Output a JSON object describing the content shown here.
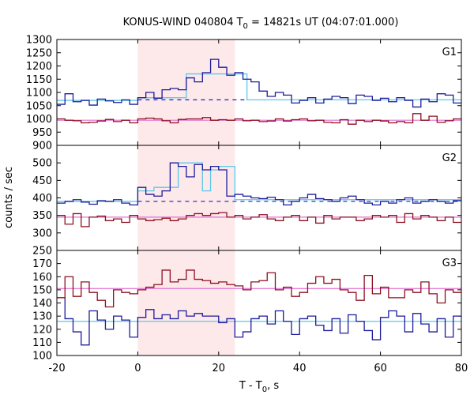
{
  "chart_data": {
    "type": "line",
    "title": "KONUS-WIND 040804 T0 = 14821s UT (04:07:01.000)",
    "title_parts": {
      "pre": "KONUS-WIND 040804 T",
      "sub": "0",
      "post": " = 14821s UT (04:07:01.000)"
    },
    "xlabel_parts": {
      "pre": "T - T",
      "sub": "0",
      "post": ", s"
    },
    "ylabel": "counts / sec",
    "xlim": [
      -20,
      80
    ],
    "xticks": [
      -20,
      0,
      20,
      40,
      60,
      80
    ],
    "shaded_interval": [
      0,
      24
    ],
    "colors": {
      "series_blue": "#1c1c9c",
      "series_red": "#8c1020",
      "fit_cyan": "#5ec8e8",
      "fit_pink": "#e070d0",
      "dashed_blue": "#1c1cbc",
      "shade": "#fde8ea"
    },
    "panels": [
      {
        "label": "G1",
        "ylim": [
          900,
          1300
        ],
        "yticks": [
          900,
          950,
          1000,
          1050,
          1100,
          1150,
          1200,
          1250,
          1300
        ],
        "bin_edges": [
          -20,
          -18,
          -16,
          -14,
          -12,
          -10,
          -8,
          -6,
          -4,
          -2,
          0,
          2,
          4,
          6,
          8,
          10,
          12,
          14,
          16,
          18,
          20,
          22,
          24,
          26,
          28,
          30,
          32,
          34,
          36,
          38,
          40,
          42,
          44,
          46,
          48,
          50,
          52,
          54,
          56,
          58,
          60,
          62,
          64,
          66,
          68,
          70,
          72,
          74,
          76,
          78,
          80
        ],
        "series": [
          {
            "color": "series_blue",
            "values": [
              1055,
              1095,
              1065,
              1070,
              1052,
              1075,
              1068,
              1062,
              1072,
              1055,
              1080,
              1100,
              1078,
              1110,
              1115,
              1110,
              1155,
              1140,
              1175,
              1225,
              1195,
              1165,
              1175,
              1150,
              1140,
              1105,
              1085,
              1100,
              1090,
              1060,
              1070,
              1080,
              1060,
              1075,
              1085,
              1080,
              1058,
              1090,
              1085,
              1070,
              1078,
              1065,
              1080,
              1070,
              1045,
              1075,
              1065,
              1095,
              1090,
              1060
            ]
          },
          {
            "color": "series_red",
            "values": [
              1000,
              995,
              993,
              985,
              987,
              992,
              998,
              990,
              995,
              985,
              1000,
              1003,
              1000,
              993,
              985,
              998,
              1000,
              1000,
              1005,
              995,
              997,
              995,
              1000,
              993,
              995,
              990,
              992,
              1000,
              992,
              997,
              1000,
              993,
              995,
              987,
              985,
              997,
              980,
              995,
              990,
              995,
              992,
              985,
              990,
              985,
              1020,
              995,
              1010,
              987,
              993,
              1000
            ]
          }
        ],
        "fits": [
          {
            "color": "fit_cyan",
            "style": "step",
            "edges": [
              -20,
              0,
              12,
              20,
              27,
              80
            ],
            "values": [
              1070,
              1080,
              1170,
              1170,
              1072,
              1072
            ]
          },
          {
            "color": "fit_pink",
            "style": "flat",
            "value": 995
          },
          {
            "color": "dashed_blue",
            "style": "dashed",
            "range": [
              0,
              27
            ],
            "value": 1072
          }
        ]
      },
      {
        "label": "G2",
        "ylim": [
          250,
          550
        ],
        "yticks": [
          250,
          300,
          350,
          400,
          450,
          500
        ],
        "bin_edges": [
          -20,
          -18,
          -16,
          -14,
          -12,
          -10,
          -8,
          -6,
          -4,
          -2,
          0,
          2,
          4,
          6,
          8,
          10,
          12,
          14,
          16,
          18,
          20,
          22,
          24,
          26,
          28,
          30,
          32,
          34,
          36,
          38,
          40,
          42,
          44,
          46,
          48,
          50,
          52,
          54,
          56,
          58,
          60,
          62,
          64,
          66,
          68,
          70,
          72,
          74,
          76,
          78,
          80
        ],
        "series": [
          {
            "color": "series_blue",
            "values": [
              385,
              390,
              395,
              388,
              382,
              392,
              390,
              395,
              385,
              380,
              430,
              410,
              405,
              420,
              500,
              490,
              460,
              495,
              480,
              490,
              480,
              405,
              410,
              405,
              400,
              398,
              402,
              395,
              380,
              390,
              400,
              410,
              398,
              395,
              390,
              400,
              405,
              395,
              385,
              380,
              390,
              385,
              395,
              400,
              385,
              390,
              395,
              390,
              385,
              392
            ]
          },
          {
            "color": "series_red",
            "values": [
              350,
              325,
              355,
              318,
              345,
              348,
              335,
              340,
              330,
              350,
              340,
              335,
              338,
              342,
              335,
              340,
              350,
              355,
              350,
              355,
              358,
              345,
              350,
              340,
              345,
              352,
              340,
              335,
              345,
              350,
              335,
              345,
              328,
              350,
              340,
              345,
              345,
              335,
              340,
              350,
              345,
              350,
              330,
              355,
              340,
              350,
              345,
              335,
              345,
              330
            ]
          }
        ],
        "fits": [
          {
            "color": "fit_cyan",
            "style": "step",
            "edges": [
              -20,
              0,
              4,
              6,
              10,
              16,
              18,
              20,
              24,
              80
            ],
            "values": [
              390,
              420,
              430,
              430,
              500,
              420,
              480,
              490,
              395,
              395
            ]
          },
          {
            "color": "fit_pink",
            "style": "flat",
            "value": 345
          },
          {
            "color": "dashed_blue",
            "style": "dashed",
            "range": [
              0,
              80
            ],
            "value": 390
          }
        ]
      },
      {
        "label": "G3",
        "ylim": [
          100,
          180
        ],
        "yticks": [
          100,
          110,
          120,
          130,
          140,
          150,
          160,
          170
        ],
        "bin_edges": [
          -20,
          -18,
          -16,
          -14,
          -12,
          -10,
          -8,
          -6,
          -4,
          -2,
          0,
          2,
          4,
          6,
          8,
          10,
          12,
          14,
          16,
          18,
          20,
          22,
          24,
          26,
          28,
          30,
          32,
          34,
          36,
          38,
          40,
          42,
          44,
          46,
          48,
          50,
          52,
          54,
          56,
          58,
          60,
          62,
          64,
          66,
          68,
          70,
          72,
          74,
          76,
          78,
          80
        ],
        "series": [
          {
            "color": "series_blue",
            "values": [
              144,
              128,
              118,
              108,
              134,
              127,
              120,
              130,
              127,
              114,
              129,
              135,
              128,
              131,
              128,
              134,
              130,
              132,
              130,
              130,
              125,
              128,
              114,
              118,
              128,
              130,
              124,
              134,
              126,
              116,
              128,
              130,
              123,
              119,
              128,
              117,
              131,
              126,
              119,
              112,
              129,
              134,
              130,
              118,
              132,
              124,
              118,
              128,
              114,
              130
            ]
          },
          {
            "color": "series_red",
            "values": [
              144,
              160,
              145,
              156,
              148,
              142,
              137,
              150,
              148,
              147,
              150,
              152,
              154,
              165,
              156,
              158,
              165,
              158,
              157,
              155,
              156,
              154,
              153,
              150,
              156,
              157,
              163,
              150,
              152,
              145,
              148,
              155,
              160,
              155,
              158,
              150,
              148,
              142,
              161,
              147,
              152,
              144,
              144,
              150,
              148,
              156,
              147,
              140,
              150,
              148
            ]
          }
        ],
        "fits": [
          {
            "color": "fit_cyan",
            "style": "flat",
            "value": 126
          },
          {
            "color": "fit_pink",
            "style": "flat",
            "value": 151
          }
        ]
      }
    ]
  }
}
